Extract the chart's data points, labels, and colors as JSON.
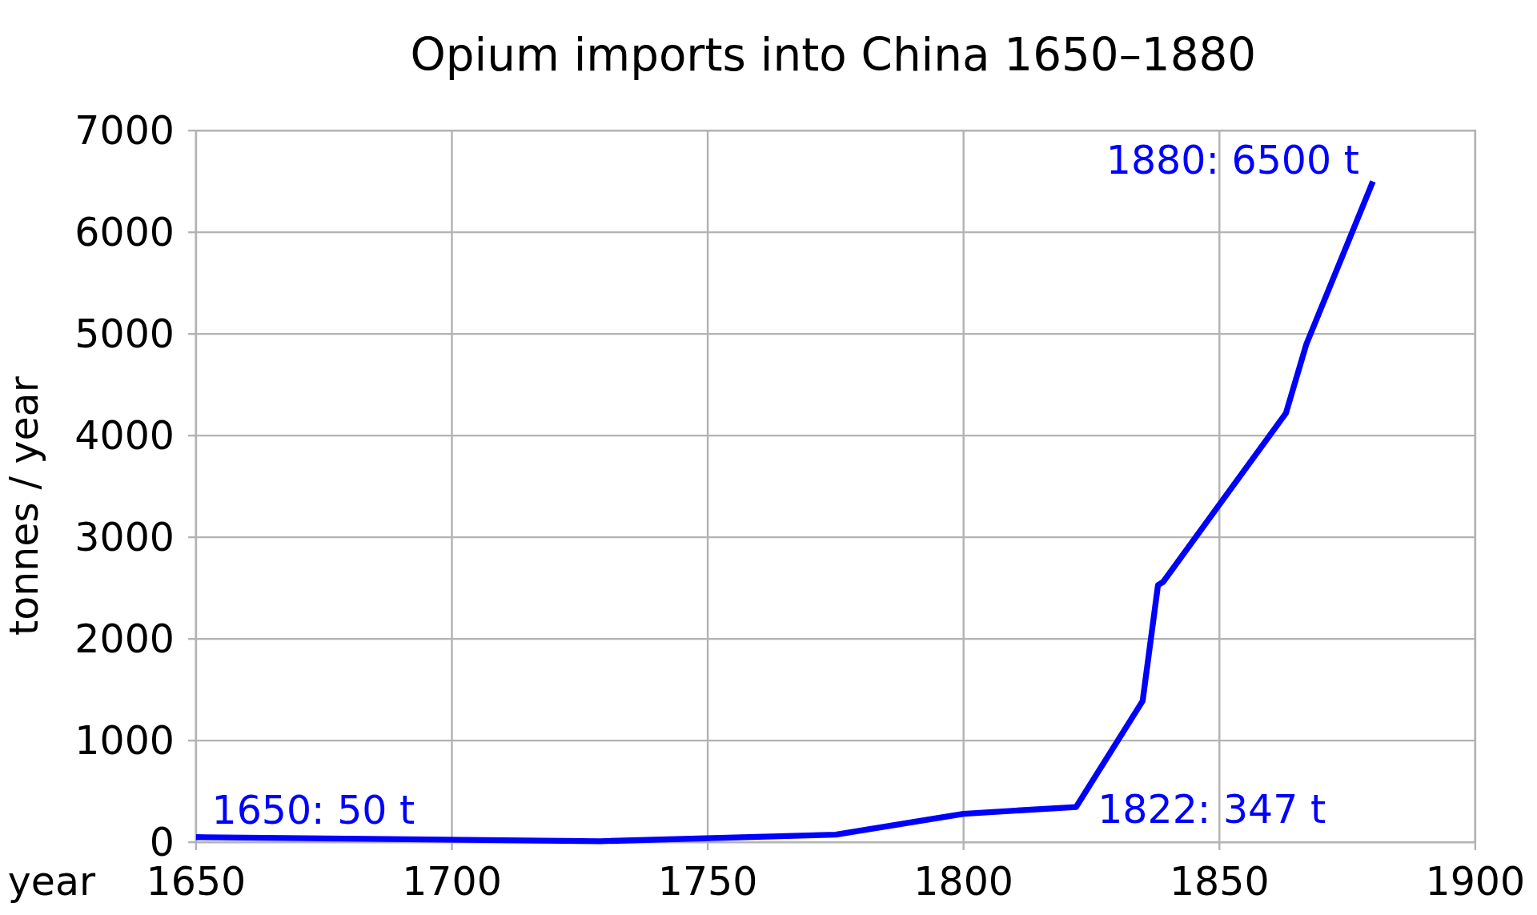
{
  "chart_data": {
    "type": "line",
    "title": "Opium imports into China 1650–1880",
    "xlabel": "year",
    "ylabel": "tonnes / year",
    "x": [
      1650,
      1729,
      1775,
      1800,
      1822,
      1835,
      1838,
      1839,
      1863,
      1867,
      1880
    ],
    "series": [
      {
        "color": "#0000ff",
        "values": [
          50,
          10,
          75,
          280,
          347,
          1390,
          2530,
          2560,
          4220,
          4900,
          6500
        ]
      }
    ],
    "xlim": [
      1650,
      1900
    ],
    "xticks": [
      1650,
      1700,
      1750,
      1800,
      1850,
      1900
    ],
    "ylim": [
      0,
      7000
    ],
    "yticks": [
      0,
      1000,
      2000,
      3000,
      4000,
      5000,
      6000,
      7000
    ],
    "grid": true,
    "marker": "none",
    "line_style": "solid",
    "annotations": [
      {
        "text": "1650: 50 t",
        "x": 1650,
        "y": 50
      },
      {
        "text": "1822: 347 t",
        "x": 1822,
        "y": 347
      },
      {
        "text": "1880: 6500 t",
        "x": 1880,
        "y": 6500
      }
    ]
  }
}
